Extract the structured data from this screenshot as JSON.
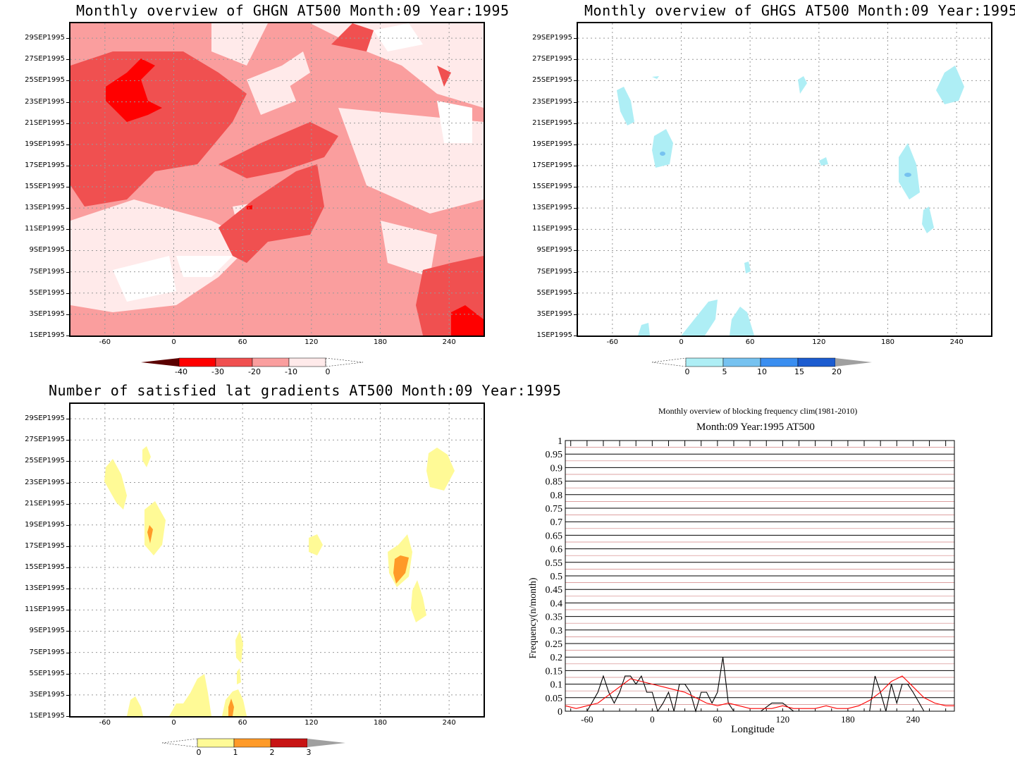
{
  "panels": {
    "ghgn": {
      "title": "Monthly overview of GHGN AT500 Month:09 Year:1995",
      "colorbar_labels": [
        "-40",
        "-30",
        "-20",
        "-10",
        "0"
      ],
      "colors": [
        "#5a0000",
        "#ff0000",
        "#f05050",
        "#fa9e9e",
        "#ffeaea"
      ]
    },
    "ghgs": {
      "title": "Monthly overview of GHGS AT500 Month:09 Year:1995",
      "colorbar_labels": [
        "0",
        "5",
        "10",
        "15",
        "20"
      ],
      "colors": [
        "#aeeef5",
        "#76c2f0",
        "#3a8ef0",
        "#1c5cd0",
        "#a0a0a0"
      ]
    },
    "gradients": {
      "title": "Number of satisfied lat gradients AT500 Month:09 Year:1995",
      "colorbar_labels": [
        "0",
        "1",
        "2",
        "3"
      ],
      "colors": [
        "#fffa96",
        "#ff9a28",
        "#c81414",
        "#a0a0a0"
      ]
    },
    "frequency": {
      "title": "Monthly overview of blocking frequency clim(1981-2010)",
      "subtitle": "Month:09 Year:1995  AT500"
    }
  },
  "date_ticks": [
    "1SEP1995",
    "3SEP1995",
    "5SEP1995",
    "7SEP1995",
    "9SEP1995",
    "11SEP1995",
    "13SEP1995",
    "15SEP1995",
    "17SEP1995",
    "19SEP1995",
    "21SEP1995",
    "23SEP1995",
    "25SEP1995",
    "27SEP1995",
    "29SEP1995"
  ],
  "lon_ticks": [
    "-60",
    "0",
    "60",
    "120",
    "180",
    "240"
  ],
  "chart_data": [
    {
      "type": "heatmap",
      "title": "Monthly overview of GHGN AT500 Month:09 Year:1995",
      "x": "longitude",
      "xlim": [
        -90,
        270
      ],
      "y": "date",
      "ylim": [
        "1SEP1995",
        "30SEP1995"
      ],
      "levels": [
        -40,
        -30,
        -20,
        -10,
        0
      ],
      "note_values": "mostly negative, min around -30"
    },
    {
      "type": "heatmap",
      "title": "Monthly overview of GHGS AT500 Month:09 Year:1995",
      "x": "longitude",
      "xlim": [
        -90,
        270
      ],
      "y": "date",
      "ylim": [
        "1SEP1995",
        "30SEP1995"
      ],
      "levels": [
        0,
        5,
        10,
        15,
        20
      ]
    },
    {
      "type": "heatmap",
      "title": "Number of satisfied lat gradients AT500 Month:09 Year:1995",
      "x": "longitude",
      "xlim": [
        -90,
        270
      ],
      "y": "date",
      "ylim": [
        "1SEP1995",
        "30SEP1995"
      ],
      "levels": [
        0,
        1,
        2,
        3
      ]
    },
    {
      "type": "line",
      "title": "Monthly overview of blocking frequency clim(1981-2010)",
      "subtitle": "Month:09 Year:1995  AT500",
      "xlabel": "Longitude",
      "ylabel": "Frequency(n/month)",
      "xlim": [
        -80,
        278
      ],
      "ylim": [
        0,
        1
      ],
      "xticks": [
        -60,
        0,
        60,
        120,
        180,
        240
      ],
      "yticks": [
        0,
        0.05,
        0.1,
        0.15,
        0.2,
        0.25,
        0.3,
        0.35,
        0.4,
        0.45,
        0.5,
        0.55,
        0.6,
        0.65,
        0.7,
        0.75,
        0.8,
        0.85,
        0.9,
        0.95,
        1
      ],
      "series": [
        {
          "color": "#000000",
          "x": [
            -80,
            -70,
            -60,
            -50,
            -45,
            -40,
            -35,
            -30,
            -25,
            -20,
            -15,
            -10,
            -5,
            0,
            5,
            10,
            15,
            20,
            25,
            30,
            35,
            40,
            45,
            50,
            55,
            60,
            65,
            70,
            75,
            80,
            90,
            100,
            110,
            120,
            130,
            140,
            150,
            160,
            170,
            180,
            190,
            200,
            205,
            210,
            215,
            220,
            225,
            230,
            235,
            240,
            250,
            260,
            270,
            278
          ],
          "y": [
            0,
            0,
            0,
            0.07,
            0.13,
            0.07,
            0.03,
            0.07,
            0.13,
            0.13,
            0.1,
            0.13,
            0.07,
            0.07,
            0,
            0.03,
            0.07,
            0,
            0.1,
            0.1,
            0.07,
            0,
            0.07,
            0.07,
            0.03,
            0.07,
            0.2,
            0.03,
            0,
            0,
            0,
            0,
            0.03,
            0.03,
            0,
            0,
            0,
            0,
            0,
            0,
            0,
            0,
            0.13,
            0.07,
            0,
            0.1,
            0.03,
            0.1,
            0.1,
            0.07,
            0,
            0,
            0,
            0
          ]
        },
        {
          "color": "#ff0000",
          "x": [
            -80,
            -70,
            -60,
            -50,
            -40,
            -30,
            -20,
            -10,
            0,
            10,
            20,
            30,
            40,
            50,
            60,
            70,
            80,
            90,
            100,
            110,
            120,
            130,
            140,
            150,
            160,
            170,
            180,
            190,
            200,
            210,
            220,
            230,
            240,
            250,
            260,
            270,
            278
          ],
          "y": [
            0.02,
            0.01,
            0.02,
            0.03,
            0.06,
            0.09,
            0.12,
            0.11,
            0.1,
            0.09,
            0.08,
            0.07,
            0.05,
            0.03,
            0.02,
            0.03,
            0.02,
            0.01,
            0.01,
            0.01,
            0.02,
            0.01,
            0.01,
            0.01,
            0.02,
            0.01,
            0.01,
            0.02,
            0.04,
            0.07,
            0.11,
            0.13,
            0.09,
            0.05,
            0.03,
            0.02,
            0.02
          ]
        }
      ]
    }
  ]
}
